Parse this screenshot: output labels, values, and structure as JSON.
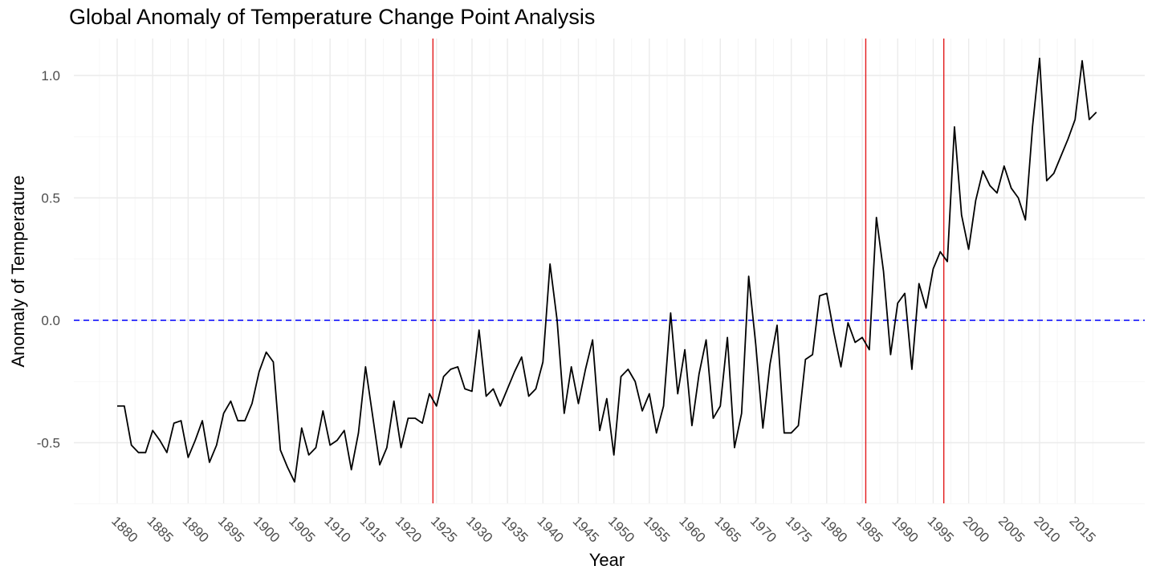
{
  "chart_data": {
    "type": "line",
    "title": "Global Anomaly of Temperature Change Point Analysis",
    "xlabel": "Year",
    "ylabel": "Anomaly of Temperature",
    "xlim": [
      1875,
      2020
    ],
    "ylim": [
      -0.75,
      1.15
    ],
    "x_ticks": [
      1880,
      1885,
      1890,
      1895,
      1900,
      1905,
      1910,
      1915,
      1920,
      1925,
      1930,
      1935,
      1940,
      1945,
      1950,
      1955,
      1960,
      1965,
      1970,
      1975,
      1980,
      1985,
      1990,
      1995,
      2000,
      2005,
      2010,
      2015
    ],
    "x_tick_labels": [
      "1880",
      "1885",
      "1890",
      "1895",
      "1900",
      "1905",
      "1910",
      "1915",
      "1920",
      "1925",
      "1930",
      "1935",
      "1940",
      "1945",
      "1950",
      "1955",
      "1960",
      "1965",
      "1970",
      "1975",
      "1980",
      "1985",
      "1990",
      "1995",
      "2000",
      "2005",
      "2010",
      "2015"
    ],
    "y_ticks": [
      -0.5,
      0.0,
      0.5,
      1.0
    ],
    "y_tick_labels": [
      "-0.5",
      "0.0",
      "0.5",
      "1.0"
    ],
    "grid": true,
    "series": [
      {
        "color": "#000000",
        "x": [
          1880,
          1881,
          1882,
          1883,
          1884,
          1885,
          1886,
          1887,
          1888,
          1889,
          1890,
          1891,
          1892,
          1893,
          1894,
          1895,
          1896,
          1897,
          1898,
          1899,
          1900,
          1901,
          1902,
          1903,
          1904,
          1905,
          1906,
          1907,
          1908,
          1909,
          1910,
          1911,
          1912,
          1913,
          1914,
          1915,
          1916,
          1917,
          1918,
          1919,
          1920,
          1921,
          1922,
          1923,
          1924,
          1925,
          1926,
          1927,
          1928,
          1929,
          1930,
          1931,
          1932,
          1933,
          1934,
          1935,
          1936,
          1937,
          1938,
          1939,
          1940,
          1941,
          1942,
          1943,
          1944,
          1945,
          1946,
          1947,
          1948,
          1949,
          1950,
          1951,
          1952,
          1953,
          1954,
          1955,
          1956,
          1957,
          1958,
          1959,
          1960,
          1961,
          1962,
          1963,
          1964,
          1965,
          1966,
          1967,
          1968,
          1969,
          1970,
          1971,
          1972,
          1973,
          1974,
          1975,
          1976,
          1977,
          1978,
          1979,
          1980,
          1981,
          1982,
          1983,
          1984,
          1985,
          1986,
          1987,
          1988,
          1989,
          1990,
          1991,
          1992,
          1993,
          1994,
          1995,
          1996,
          1997,
          1998,
          1999,
          2000,
          2001,
          2002,
          2003,
          2004,
          2005,
          2006,
          2007,
          2008,
          2009,
          2010,
          2011,
          2012,
          2013,
          2014,
          2015,
          2016,
          2017,
          2018
        ],
        "y": [
          -0.35,
          -0.35,
          -0.51,
          -0.54,
          -0.54,
          -0.45,
          -0.49,
          -0.54,
          -0.42,
          -0.41,
          -0.56,
          -0.49,
          -0.41,
          -0.58,
          -0.51,
          -0.38,
          -0.33,
          -0.41,
          -0.41,
          -0.34,
          -0.21,
          -0.13,
          -0.17,
          -0.53,
          -0.6,
          -0.66,
          -0.44,
          -0.55,
          -0.52,
          -0.37,
          -0.51,
          -0.49,
          -0.45,
          -0.61,
          -0.46,
          -0.19,
          -0.39,
          -0.59,
          -0.52,
          -0.33,
          -0.52,
          -0.4,
          -0.4,
          -0.42,
          -0.3,
          -0.35,
          -0.23,
          -0.2,
          -0.19,
          -0.28,
          -0.29,
          -0.04,
          -0.31,
          -0.28,
          -0.35,
          -0.28,
          -0.21,
          -0.15,
          -0.31,
          -0.28,
          -0.17,
          0.23,
          0.0,
          -0.38,
          -0.19,
          -0.34,
          -0.2,
          -0.08,
          -0.45,
          -0.32,
          -0.55,
          -0.23,
          -0.2,
          -0.25,
          -0.37,
          -0.3,
          -0.46,
          -0.35,
          0.03,
          -0.3,
          -0.12,
          -0.43,
          -0.22,
          -0.08,
          -0.4,
          -0.35,
          -0.07,
          -0.52,
          -0.38,
          0.18,
          -0.1,
          -0.44,
          -0.18,
          -0.02,
          -0.46,
          -0.46,
          -0.43,
          -0.16,
          -0.14,
          0.1,
          0.11,
          -0.05,
          -0.19,
          -0.01,
          -0.09,
          -0.07,
          -0.12,
          0.42,
          0.2,
          -0.14,
          0.07,
          0.11,
          -0.2,
          0.15,
          0.05,
          0.21,
          0.28,
          0.24,
          0.79,
          0.43,
          0.29,
          0.49,
          0.61,
          0.55,
          0.52,
          0.63,
          0.54,
          0.5,
          0.41,
          0.79,
          1.07,
          0.57,
          0.6,
          0.67,
          0.74,
          0.82,
          1.06,
          0.82,
          0.85
        ]
      }
    ],
    "reference_lines": {
      "horizontal": [
        {
          "y": 0.0,
          "color": "#0000ff",
          "style": "dashed"
        }
      ],
      "vertical": [
        {
          "x": 1924.5,
          "color": "#e31a1c"
        },
        {
          "x": 1985.5,
          "color": "#e31a1c"
        },
        {
          "x": 1996.5,
          "color": "#e31a1c"
        }
      ]
    }
  }
}
